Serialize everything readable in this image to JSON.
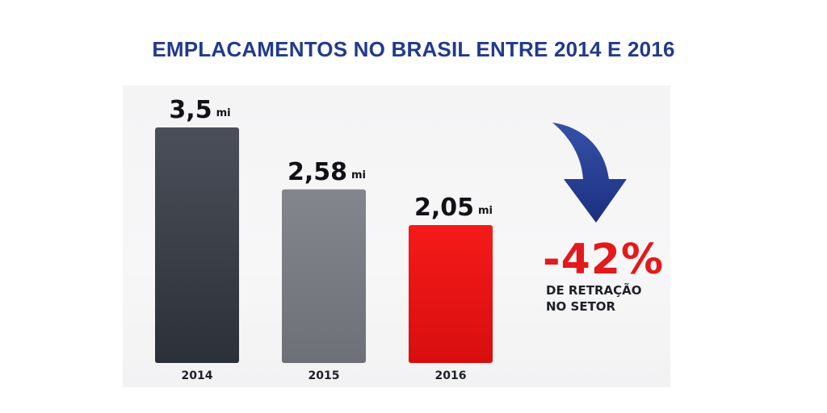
{
  "chart_data": {
    "type": "bar",
    "title": "EMPLACAMENTOS NO BRASIL ENTRE 2014 E 2016",
    "categories": [
      "2014",
      "2015",
      "2016"
    ],
    "values": [
      3.5,
      2.58,
      2.05
    ],
    "value_labels": [
      "3,5",
      "2,58",
      "2,05"
    ],
    "unit_label": "mi",
    "xlabel": "",
    "ylabel": "",
    "ylim": [
      0,
      3.5
    ],
    "grid": false,
    "colors": [
      "#363b45",
      "#74777d",
      "#ec1111"
    ],
    "annotation": {
      "value": "-42%",
      "line1": "DE RETRAÇÃO",
      "line2": "NO SETOR",
      "arrow_icon": "curved-down-arrow-icon",
      "value_color": "#e3191c",
      "arrow_color": "#213a8f"
    }
  }
}
